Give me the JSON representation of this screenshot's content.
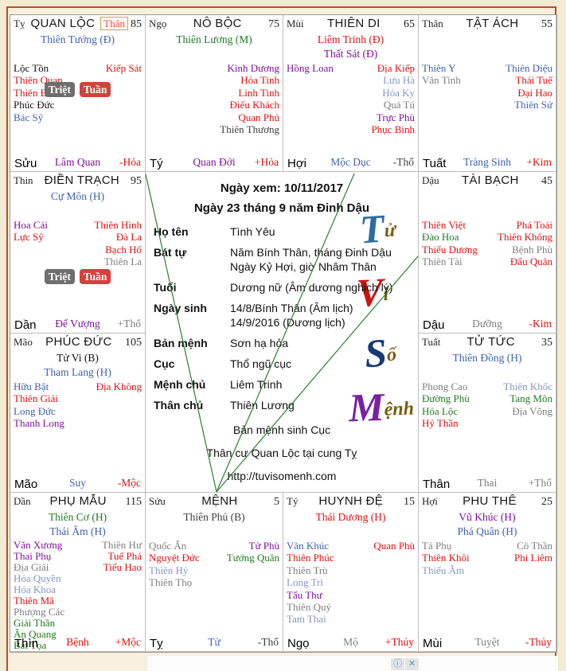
{
  "colors": {
    "red": "#e01010",
    "blue": "#3f61ae",
    "lightblue": "#8496c8",
    "green": "#1f7a1f",
    "purple": "#7d109d",
    "gray": "#7d7d7d",
    "dark": "#3c3c3c",
    "black": "#101010"
  },
  "badge_colors": {
    "gray": "#6e6e6e",
    "red": "#d2423b"
  },
  "center": {
    "view_date_line": "Ngày xem: 10/11/2017",
    "lunar_date_line": "Ngày 23 tháng 9 năm Đinh Dậu",
    "info_rows": [
      {
        "label": "Họ tên",
        "value": [
          "Tình Yêu"
        ]
      },
      {
        "label": "Bát tự",
        "value": [
          "Năm Bính Thân, tháng Đinh Dậu",
          "Ngày Kỷ Hợi, giờ Nhâm Thân"
        ]
      },
      {
        "label": "Tuổi",
        "value": [
          "Dương nữ (Âm dương nghịch lý)"
        ]
      },
      {
        "label": "Ngày sinh",
        "value": [
          "14/8/Bính Thân (Âm lịch)",
          "14/9/2016 (Dương lịch)"
        ]
      },
      {
        "label": "Bản mệnh",
        "value": [
          "Sơn hạ hỏa"
        ]
      },
      {
        "label": "Cục",
        "value": [
          "Thổ ngũ cục"
        ]
      },
      {
        "label": "Mệnh chủ",
        "value": [
          "Liêm Trinh"
        ]
      },
      {
        "label": "Thân chủ",
        "value": [
          "Thiên Lương"
        ]
      }
    ],
    "notes": [
      "Bản mệnh sinh Cục",
      "Thân cư Quan Lộc tại cung Tỵ",
      "http://tuvisomenh.com"
    ]
  },
  "watermark": [
    {
      "lead": "T",
      "tail": "ử",
      "lead_color": "#2e6da4",
      "tail_color": "#7a5c10"
    },
    {
      "lead": "V",
      "tail": "i",
      "lead_color": "#cc1410",
      "tail_color": "#7a5c10"
    },
    {
      "lead": "S",
      "tail": "ố",
      "lead_color": "#173a73",
      "tail_color": "#7a5c10"
    },
    {
      "lead": "M",
      "tail": "ệnh",
      "lead_color": "#7b1fa2",
      "tail_color": "#7a5c10"
    }
  ],
  "palaces": [
    {
      "id": "quan-loc",
      "branch": "Tỵ",
      "name": "QUAN LỘC",
      "header_badge": "Thân",
      "score": "85",
      "main_stars": [
        {
          "t": "Thiên Tướng (Đ)",
          "c": "blue"
        }
      ],
      "left": [
        {
          "t": "Lộc Tồn",
          "c": "black"
        },
        {
          "t": "Thiên Quan",
          "c": "red"
        },
        {
          "t": "Thiên Đức",
          "c": "red"
        },
        {
          "t": "Phúc Đức",
          "c": "black"
        },
        {
          "t": "Bác Sỹ",
          "c": "blue"
        }
      ],
      "right": [
        {
          "t": "Kiếp Sát",
          "c": "red"
        }
      ],
      "badges": [
        {
          "t": "Triệt",
          "bg": "gray"
        },
        {
          "t": "Tuần",
          "bg": "red"
        }
      ],
      "badge_pos": "high",
      "footer": {
        "branch": "Sửu",
        "stage": {
          "t": "Lâm Quan",
          "c": "purple"
        },
        "element": {
          "t": "-Hỏa",
          "c": "red"
        }
      }
    },
    {
      "id": "no-boc",
      "branch": "Ngọ",
      "name": "NÔ BỘC",
      "header_badge": null,
      "score": "75",
      "main_stars": [
        {
          "t": "Thiên Lương (M)",
          "c": "green"
        }
      ],
      "left": [],
      "right": [
        {
          "t": "Kình Dương",
          "c": "purple"
        },
        {
          "t": "Hỏa Tinh",
          "c": "red"
        },
        {
          "t": "Linh Tinh",
          "c": "red"
        },
        {
          "t": "Điếu Khách",
          "c": "red"
        },
        {
          "t": "Quan Phủ",
          "c": "red"
        },
        {
          "t": "Thiên Thương",
          "c": "dark"
        }
      ],
      "badges": [],
      "badge_pos": null,
      "footer": {
        "branch": "Tý",
        "stage": {
          "t": "Quan Đới",
          "c": "purple"
        },
        "element": {
          "t": "+Hỏa",
          "c": "red"
        }
      }
    },
    {
      "id": "thien-di",
      "branch": "Mùi",
      "name": "THIÊN DI",
      "header_badge": null,
      "score": "65",
      "main_stars": [
        {
          "t": "Liêm Trinh (Đ)",
          "c": "red"
        },
        {
          "t": "Thất Sát (Đ)",
          "c": "purple"
        }
      ],
      "left": [
        {
          "t": "Hồng Loan",
          "c": "purple"
        }
      ],
      "right": [
        {
          "t": "Địa Kiếp",
          "c": "red"
        },
        {
          "t": "Lưu Hà",
          "c": "lightblue"
        },
        {
          "t": "Hóa Ky",
          "c": "lightblue"
        },
        {
          "t": "Quả Tú",
          "c": "gray"
        },
        {
          "t": "Trực Phù",
          "c": "purple"
        },
        {
          "t": "Phục Binh",
          "c": "red"
        }
      ],
      "badges": [],
      "badge_pos": null,
      "footer": {
        "branch": "Hợi",
        "stage": {
          "t": "Mộc Dục",
          "c": "blue"
        },
        "element": {
          "t": "-Thổ",
          "c": "dark"
        }
      }
    },
    {
      "id": "tat-ach",
      "branch": "Thân",
      "name": "TẬT ÁCH",
      "header_badge": null,
      "score": "55",
      "main_stars": [],
      "left": [
        {
          "t": "Thiên Y",
          "c": "blue"
        },
        {
          "t": "Văn Tinh",
          "c": "gray"
        }
      ],
      "right": [
        {
          "t": "Thiên Diệu",
          "c": "blue"
        },
        {
          "t": "Thái Tuế",
          "c": "red"
        },
        {
          "t": "Đại Hao",
          "c": "red"
        },
        {
          "t": "Thiên Sứ",
          "c": "blue"
        }
      ],
      "badges": [],
      "badge_pos": null,
      "footer": {
        "branch": "Tuất",
        "stage": {
          "t": "Tràng Sinh",
          "c": "blue"
        },
        "element": {
          "t": "+Kim",
          "c": "red"
        }
      }
    },
    {
      "id": "dien-trach",
      "branch": "Thin",
      "name": "ĐIỀN TRẠCH",
      "header_badge": null,
      "score": "95",
      "main_stars": [
        {
          "t": "Cự Môn (H)",
          "c": "blue"
        }
      ],
      "left": [
        {
          "t": "Hoa Cái",
          "c": "purple"
        },
        {
          "t": "Lực Sỹ",
          "c": "red"
        }
      ],
      "right": [
        {
          "t": "Thiên Hình",
          "c": "red"
        },
        {
          "t": "Đà La",
          "c": "red"
        },
        {
          "t": "Bạch Hổ",
          "c": "red"
        },
        {
          "t": "Thiên La",
          "c": "gray"
        }
      ],
      "badges": [
        {
          "t": "Triệt",
          "bg": "gray"
        },
        {
          "t": "Tuần",
          "bg": "red"
        }
      ],
      "badge_pos": "mid",
      "footer": {
        "branch": "Dần",
        "stage": {
          "t": "Đế Vượng",
          "c": "purple"
        },
        "element": {
          "t": "+Thổ",
          "c": "gray"
        }
      }
    },
    {
      "id": "tai-bach",
      "branch": "Dậu",
      "name": "TÀI BẠCH",
      "header_badge": null,
      "score": "45",
      "main_stars": [],
      "left": [
        {
          "t": "Thiên Việt",
          "c": "red"
        },
        {
          "t": "Đào Hoa",
          "c": "green"
        },
        {
          "t": "Thiếu Dương",
          "c": "red"
        },
        {
          "t": "Thiên Tài",
          "c": "gray"
        }
      ],
      "right": [
        {
          "t": "Phá Toái",
          "c": "red"
        },
        {
          "t": "Thiên Không",
          "c": "red"
        },
        {
          "t": "Bệnh Phù",
          "c": "gray"
        },
        {
          "t": "Đẩu Quân",
          "c": "red"
        }
      ],
      "badges": [],
      "badge_pos": null,
      "footer": {
        "branch": "Dậu",
        "stage": {
          "t": "Dưỡng",
          "c": "gray"
        },
        "element": {
          "t": "-Kim",
          "c": "red"
        }
      }
    },
    {
      "id": "phuc-duc",
      "branch": "Mão",
      "name": "PHÚC ĐỨC",
      "header_badge": null,
      "score": "105",
      "main_stars": [
        {
          "t": "Tử Vi (B)",
          "c": "black"
        },
        {
          "t": "Tham Lang (H)",
          "c": "blue"
        }
      ],
      "left": [
        {
          "t": "Hữu Bật",
          "c": "blue"
        },
        {
          "t": "Thiên Giải",
          "c": "red"
        },
        {
          "t": "Long Đức",
          "c": "blue"
        },
        {
          "t": "Thanh Long",
          "c": "purple"
        }
      ],
      "right": [
        {
          "t": "Địa Không",
          "c": "red"
        }
      ],
      "badges": [],
      "badge_pos": null,
      "footer": {
        "branch": "Mão",
        "stage": {
          "t": "Suy",
          "c": "blue"
        },
        "element": {
          "t": "-Mộc",
          "c": "red"
        }
      }
    },
    {
      "id": "tu-tuc",
      "branch": "Tuất",
      "name": "TỬ TỨC",
      "header_badge": null,
      "score": "35",
      "main_stars": [
        {
          "t": "Thiên Đồng (H)",
          "c": "blue"
        }
      ],
      "left": [
        {
          "t": "Phong Cao",
          "c": "gray"
        },
        {
          "t": "Đường Phù",
          "c": "green"
        },
        {
          "t": "Hóa Lộc",
          "c": "green"
        },
        {
          "t": "Hỷ Thần",
          "c": "red"
        }
      ],
      "right": [
        {
          "t": "Thiên Khốc",
          "c": "lightblue"
        },
        {
          "t": "Tang Môn",
          "c": "green"
        },
        {
          "t": "Địa Võng",
          "c": "gray"
        }
      ],
      "badges": [],
      "badge_pos": null,
      "footer": {
        "branch": "Thân",
        "stage": {
          "t": "Thai",
          "c": "gray"
        },
        "element": {
          "t": "+Thổ",
          "c": "gray"
        }
      }
    },
    {
      "id": "phu-mau",
      "branch": "Dần",
      "name": "PHỤ MẪU",
      "header_badge": null,
      "score": "115",
      "main_stars": [
        {
          "t": "Thiên Cơ (H)",
          "c": "green"
        },
        {
          "t": "Thái Âm (H)",
          "c": "blue"
        }
      ],
      "left": [
        {
          "t": "Văn Xương",
          "c": "purple"
        },
        {
          "t": "Thai Phụ",
          "c": "purple"
        },
        {
          "t": "Địa Giải",
          "c": "gray"
        },
        {
          "t": "Hóa Quyền",
          "c": "lightblue"
        },
        {
          "t": "Hóa Khoa",
          "c": "lightblue"
        },
        {
          "t": "Thiên Mã",
          "c": "red"
        },
        {
          "t": "Phượng Các",
          "c": "gray"
        },
        {
          "t": "Giải Thần",
          "c": "green"
        },
        {
          "t": "Ân Quang",
          "c": "green"
        },
        {
          "t": "Bát Tọa",
          "c": "green"
        }
      ],
      "right": [
        {
          "t": "Thiên Hư",
          "c": "gray"
        },
        {
          "t": "Tuế Phá",
          "c": "red"
        },
        {
          "t": "Tiểu Hao",
          "c": "red"
        }
      ],
      "badges": [],
      "badge_pos": null,
      "compact": true,
      "footer": {
        "branch": "Thìn",
        "stage": {
          "t": "Bệnh",
          "c": "red"
        },
        "element": {
          "t": "+Mộc",
          "c": "red"
        }
      }
    },
    {
      "id": "menh",
      "branch": "Sửu",
      "name": "MỆNH",
      "header_badge": null,
      "score": "5",
      "main_stars": [
        {
          "t": "Thiên Phủ (B)",
          "c": "dark"
        }
      ],
      "left": [
        {
          "t": "Quốc Ấn",
          "c": "gray"
        },
        {
          "t": "Nguyệt Đức",
          "c": "red"
        },
        {
          "t": "Thiên Hỷ",
          "c": "lightblue"
        },
        {
          "t": "Thiên Thọ",
          "c": "gray"
        }
      ],
      "right": [
        {
          "t": "Tử Phù",
          "c": "purple"
        },
        {
          "t": "Tướng Quân",
          "c": "green"
        }
      ],
      "badges": [],
      "badge_pos": null,
      "footer": {
        "branch": "Tỵ",
        "stage": {
          "t": "Tử",
          "c": "blue"
        },
        "element": {
          "t": "-Thổ",
          "c": "dark"
        }
      }
    },
    {
      "id": "huynh-de",
      "branch": "Tý",
      "name": "HUYNH ĐỆ",
      "header_badge": null,
      "score": "15",
      "main_stars": [
        {
          "t": "Thái Dương (H)",
          "c": "red"
        }
      ],
      "left": [
        {
          "t": "Văn Khúc",
          "c": "blue"
        },
        {
          "t": "Thiên Phúc",
          "c": "red"
        },
        {
          "t": "Thiên Trù",
          "c": "gray"
        },
        {
          "t": "Long Trì",
          "c": "lightblue"
        },
        {
          "t": "Tẩu Thư",
          "c": "purple"
        },
        {
          "t": "Thiên Quý",
          "c": "gray"
        },
        {
          "t": "Tam Thai",
          "c": "lightblue"
        }
      ],
      "right": [
        {
          "t": "Quan Phù",
          "c": "red"
        }
      ],
      "badges": [],
      "badge_pos": null,
      "footer": {
        "branch": "Ngọ",
        "stage": {
          "t": "Mộ",
          "c": "gray"
        },
        "element": {
          "t": "+Thủy",
          "c": "red"
        }
      }
    },
    {
      "id": "phu-the",
      "branch": "Hợi",
      "name": "PHU THÊ",
      "header_badge": null,
      "score": "25",
      "main_stars": [
        {
          "t": "Vũ Khúc (H)",
          "c": "purple"
        },
        {
          "t": "Phá Quân (H)",
          "c": "blue"
        }
      ],
      "left": [
        {
          "t": "Tả Phụ",
          "c": "gray"
        },
        {
          "t": "Thiên Khôi",
          "c": "red"
        },
        {
          "t": "Thiếu Âm",
          "c": "lightblue"
        }
      ],
      "right": [
        {
          "t": "Cô Thần",
          "c": "gray"
        },
        {
          "t": "Phi Liêm",
          "c": "red"
        }
      ],
      "badges": [],
      "badge_pos": null,
      "footer": {
        "branch": "Mùi",
        "stage": {
          "t": "Tuyệt",
          "c": "gray"
        },
        "element": {
          "t": "-Thủy",
          "c": "red"
        }
      }
    }
  ],
  "ad": {
    "info_icon": "ⓘ",
    "close_icon": "✕"
  }
}
